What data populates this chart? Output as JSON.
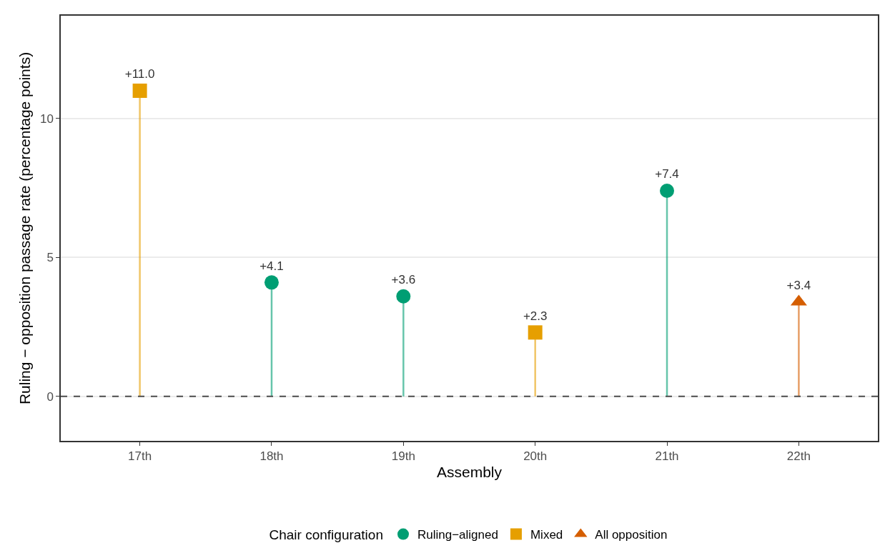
{
  "chart_data": {
    "type": "lollipop",
    "xlabel": "Assembly",
    "ylabel": "Ruling − opposition passage rate (percentage points)",
    "legend_title": "Chair configuration",
    "categories": [
      "17th",
      "18th",
      "19th",
      "20th",
      "21th",
      "22th"
    ],
    "series": [
      {
        "name": "Ruling−aligned",
        "color": "#009e73",
        "marker": "circle",
        "values": [
          null,
          4.1,
          3.6,
          null,
          7.4,
          null
        ],
        "value_labels": [
          null,
          "+4.1",
          "+3.6",
          null,
          "+7.4",
          null
        ]
      },
      {
        "name": "Mixed",
        "color": "#e69f00",
        "marker": "square",
        "values": [
          11.0,
          null,
          null,
          2.3,
          null,
          null
        ],
        "value_labels": [
          "+11.0",
          null,
          null,
          "+2.3",
          null,
          null
        ]
      },
      {
        "name": "All opposition",
        "color": "#d55e00",
        "marker": "triangle",
        "values": [
          null,
          null,
          null,
          null,
          null,
          3.4
        ],
        "value_labels": [
          null,
          null,
          null,
          null,
          null,
          "+3.4"
        ]
      }
    ],
    "ylim": [
      -1.6,
      13.7
    ],
    "yticks": [
      0,
      5,
      10
    ],
    "grid": "y",
    "legend": "bottom",
    "ref_lines": [
      {
        "axis": "y",
        "value": 0,
        "color": "#4d4d4d",
        "line_style": "dashed"
      }
    ]
  }
}
